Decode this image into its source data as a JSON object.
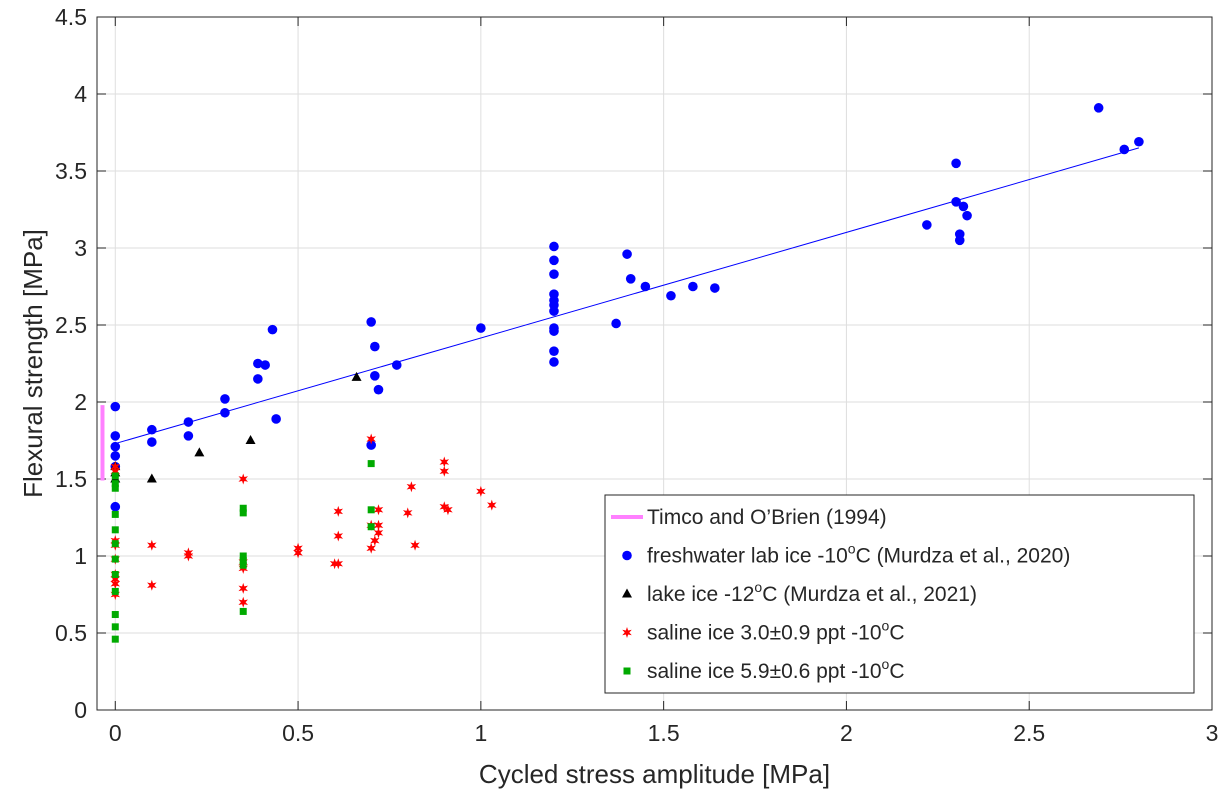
{
  "chart_data": {
    "type": "scatter",
    "title": "",
    "xlabel": "Cycled stress amplitude [MPa]",
    "ylabel": "Flexural strength [MPa]",
    "xlim": [
      -0.05,
      3
    ],
    "ylim": [
      0,
      4.5
    ],
    "x_ticks": [
      0,
      0.5,
      1,
      1.5,
      2,
      2.5,
      3
    ],
    "x_tick_labels": [
      "0",
      "0.5",
      "1",
      "1.5",
      "2",
      "2.5",
      "3"
    ],
    "y_ticks": [
      0,
      0.5,
      1,
      1.5,
      2,
      2.5,
      3,
      3.5,
      4,
      4.5
    ],
    "y_tick_labels": [
      "0",
      "0.5",
      "1",
      "1.5",
      "2",
      "2.5",
      "3",
      "3.5",
      "4",
      "4.5"
    ],
    "grid": true,
    "legend_position": "bottom-right",
    "legend": [
      {
        "series": "timco",
        "pre": "Timco and O’Brien (1994)",
        "sup": "",
        "post": ""
      },
      {
        "series": "freshwater",
        "pre": "freshwater lab ice -10",
        "sup": "o",
        "post": "C (Murdza et al., 2020)"
      },
      {
        "series": "lake",
        "pre": "lake ice -12",
        "sup": "o",
        "post": "C (Murdza et al., 2021)"
      },
      {
        "series": "saline30",
        "pre": "saline ice 3.0±0.9 ppt -10",
        "sup": "o",
        "post": "C"
      },
      {
        "series": "saline59",
        "pre": "saline ice 5.9±0.6 ppt -10",
        "sup": "o",
        "post": "C"
      }
    ],
    "series": [
      {
        "id": "timco",
        "name": "Timco and O’Brien (1994)",
        "kind": "range",
        "color": "#ff80ff",
        "x": -0.035,
        "y_range": [
          1.49,
          1.98
        ]
      },
      {
        "id": "fit",
        "kind": "line",
        "color": "#0000ff",
        "x": [
          0,
          2.8
        ],
        "y": [
          1.73,
          3.65
        ]
      },
      {
        "id": "freshwater",
        "name": "freshwater lab ice -10°C (Murdza et al., 2020)",
        "marker": "circle",
        "color": "#0000ff",
        "points": [
          [
            0,
            1.97
          ],
          [
            0,
            1.78
          ],
          [
            0,
            1.71
          ],
          [
            0,
            1.65
          ],
          [
            0,
            1.58
          ],
          [
            0,
            1.32
          ],
          [
            0.1,
            1.82
          ],
          [
            0.1,
            1.74
          ],
          [
            0.2,
            1.87
          ],
          [
            0.2,
            1.78
          ],
          [
            0.3,
            2.02
          ],
          [
            0.3,
            1.93
          ],
          [
            0.39,
            2.25
          ],
          [
            0.39,
            2.15
          ],
          [
            0.41,
            2.24
          ],
          [
            0.43,
            2.47
          ],
          [
            0.44,
            1.89
          ],
          [
            0.7,
            2.52
          ],
          [
            0.7,
            1.72
          ],
          [
            0.71,
            2.36
          ],
          [
            0.71,
            2.17
          ],
          [
            0.72,
            2.08
          ],
          [
            0.77,
            2.24
          ],
          [
            1.0,
            2.48
          ],
          [
            1.2,
            3.01
          ],
          [
            1.2,
            2.92
          ],
          [
            1.2,
            2.83
          ],
          [
            1.2,
            2.7
          ],
          [
            1.2,
            2.66
          ],
          [
            1.2,
            2.63
          ],
          [
            1.2,
            2.59
          ],
          [
            1.2,
            2.48
          ],
          [
            1.2,
            2.46
          ],
          [
            1.2,
            2.33
          ],
          [
            1.2,
            2.26
          ],
          [
            1.37,
            2.51
          ],
          [
            1.4,
            2.96
          ],
          [
            1.41,
            2.8
          ],
          [
            1.45,
            2.75
          ],
          [
            1.52,
            2.69
          ],
          [
            1.58,
            2.75
          ],
          [
            1.64,
            2.74
          ],
          [
            2.22,
            3.15
          ],
          [
            2.3,
            3.55
          ],
          [
            2.3,
            3.3
          ],
          [
            2.31,
            3.09
          ],
          [
            2.31,
            3.05
          ],
          [
            2.32,
            3.27
          ],
          [
            2.33,
            3.21
          ],
          [
            2.69,
            3.91
          ],
          [
            2.76,
            3.64
          ],
          [
            2.8,
            3.69
          ]
        ]
      },
      {
        "id": "lake",
        "name": "lake ice -12°C (Murdza et al., 2021)",
        "marker": "triangle",
        "color": "#000000",
        "points": [
          [
            0,
            1.58
          ],
          [
            0,
            1.54
          ],
          [
            0,
            1.5
          ],
          [
            0.1,
            1.5
          ],
          [
            0.23,
            1.67
          ],
          [
            0.37,
            1.75
          ],
          [
            0.66,
            2.16
          ]
        ]
      },
      {
        "id": "saline30",
        "name": "saline ice 3.0±0.9 ppt -10°C",
        "marker": "star",
        "color": "#ff0000",
        "points": [
          [
            0,
            1.58
          ],
          [
            0,
            1.55
          ],
          [
            0,
            1.1
          ],
          [
            0,
            1.07
          ],
          [
            0,
            0.98
          ],
          [
            0,
            0.88
          ],
          [
            0,
            0.85
          ],
          [
            0,
            0.82
          ],
          [
            0,
            0.75
          ],
          [
            0.1,
            1.07
          ],
          [
            0.1,
            0.81
          ],
          [
            0.2,
            1.02
          ],
          [
            0.2,
            1.0
          ],
          [
            0.35,
            1.5
          ],
          [
            0.35,
            0.96
          ],
          [
            0.35,
            0.92
          ],
          [
            0.35,
            0.79
          ],
          [
            0.35,
            0.7
          ],
          [
            0.5,
            1.05
          ],
          [
            0.5,
            1.02
          ],
          [
            0.6,
            0.95
          ],
          [
            0.61,
            1.29
          ],
          [
            0.61,
            1.13
          ],
          [
            0.61,
            0.95
          ],
          [
            0.7,
            1.76
          ],
          [
            0.7,
            1.2
          ],
          [
            0.7,
            1.05
          ],
          [
            0.71,
            1.1
          ],
          [
            0.72,
            1.3
          ],
          [
            0.72,
            1.2
          ],
          [
            0.72,
            1.15
          ],
          [
            0.8,
            1.28
          ],
          [
            0.81,
            1.45
          ],
          [
            0.82,
            1.07
          ],
          [
            0.9,
            1.61
          ],
          [
            0.9,
            1.55
          ],
          [
            0.9,
            1.32
          ],
          [
            0.91,
            1.3
          ],
          [
            1.0,
            1.42
          ],
          [
            1.03,
            1.33
          ]
        ]
      },
      {
        "id": "saline59",
        "name": "saline ice 5.9±0.6 ppt -10°C",
        "marker": "square",
        "color": "#00aa00",
        "points": [
          [
            0,
            1.52
          ],
          [
            0,
            1.47
          ],
          [
            0,
            1.44
          ],
          [
            0,
            1.27
          ],
          [
            0,
            1.17
          ],
          [
            0,
            1.08
          ],
          [
            0,
            0.98
          ],
          [
            0,
            0.88
          ],
          [
            0,
            0.77
          ],
          [
            0,
            0.62
          ],
          [
            0,
            0.54
          ],
          [
            0,
            0.46
          ],
          [
            0.35,
            1.31
          ],
          [
            0.35,
            1.28
          ],
          [
            0.35,
            1.0
          ],
          [
            0.35,
            0.97
          ],
          [
            0.35,
            0.94
          ],
          [
            0.35,
            0.64
          ],
          [
            0.7,
            1.6
          ],
          [
            0.7,
            1.3
          ],
          [
            0.7,
            1.19
          ]
        ]
      }
    ]
  }
}
